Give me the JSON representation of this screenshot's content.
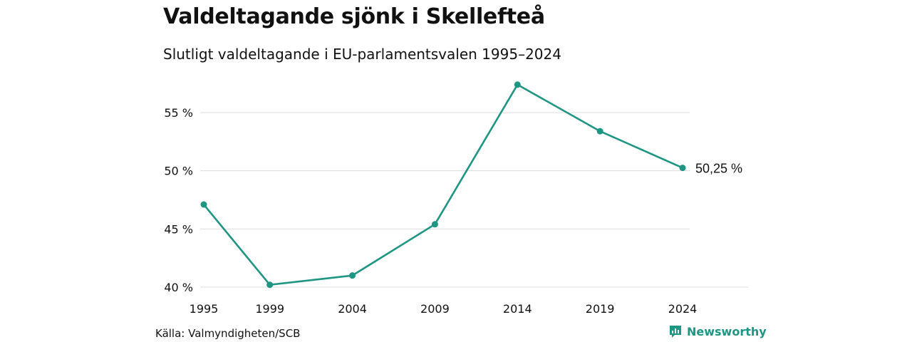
{
  "title": "Valdeltagande sjönk i Skellefteå",
  "subtitle": "Slutligt valdeltagande i EU-parlamentsvalen 1995–2024",
  "source": "Källa: Valmyndigheten/SCB",
  "brand": "Newsworthy",
  "colors": {
    "line": "#1f9583",
    "grid": "#dddddd",
    "text": "#111111"
  },
  "chart_data": {
    "type": "line",
    "x": [
      1995,
      1999,
      2004,
      2009,
      2014,
      2019,
      2024
    ],
    "series": [
      {
        "values": [
          47.1,
          40.2,
          41.0,
          45.4,
          57.4,
          53.4,
          50.25
        ]
      }
    ],
    "y_ticks": [
      {
        "value": 40,
        "label": "40 %"
      },
      {
        "value": 45,
        "label": "45 %"
      },
      {
        "value": 50,
        "label": "50 %"
      },
      {
        "value": 55,
        "label": "55 %"
      }
    ],
    "x_tick_labels": [
      "1995",
      "1999",
      "2004",
      "2009",
      "2014",
      "2019",
      "2024"
    ],
    "end_label": "50,25 %",
    "grid": true
  }
}
